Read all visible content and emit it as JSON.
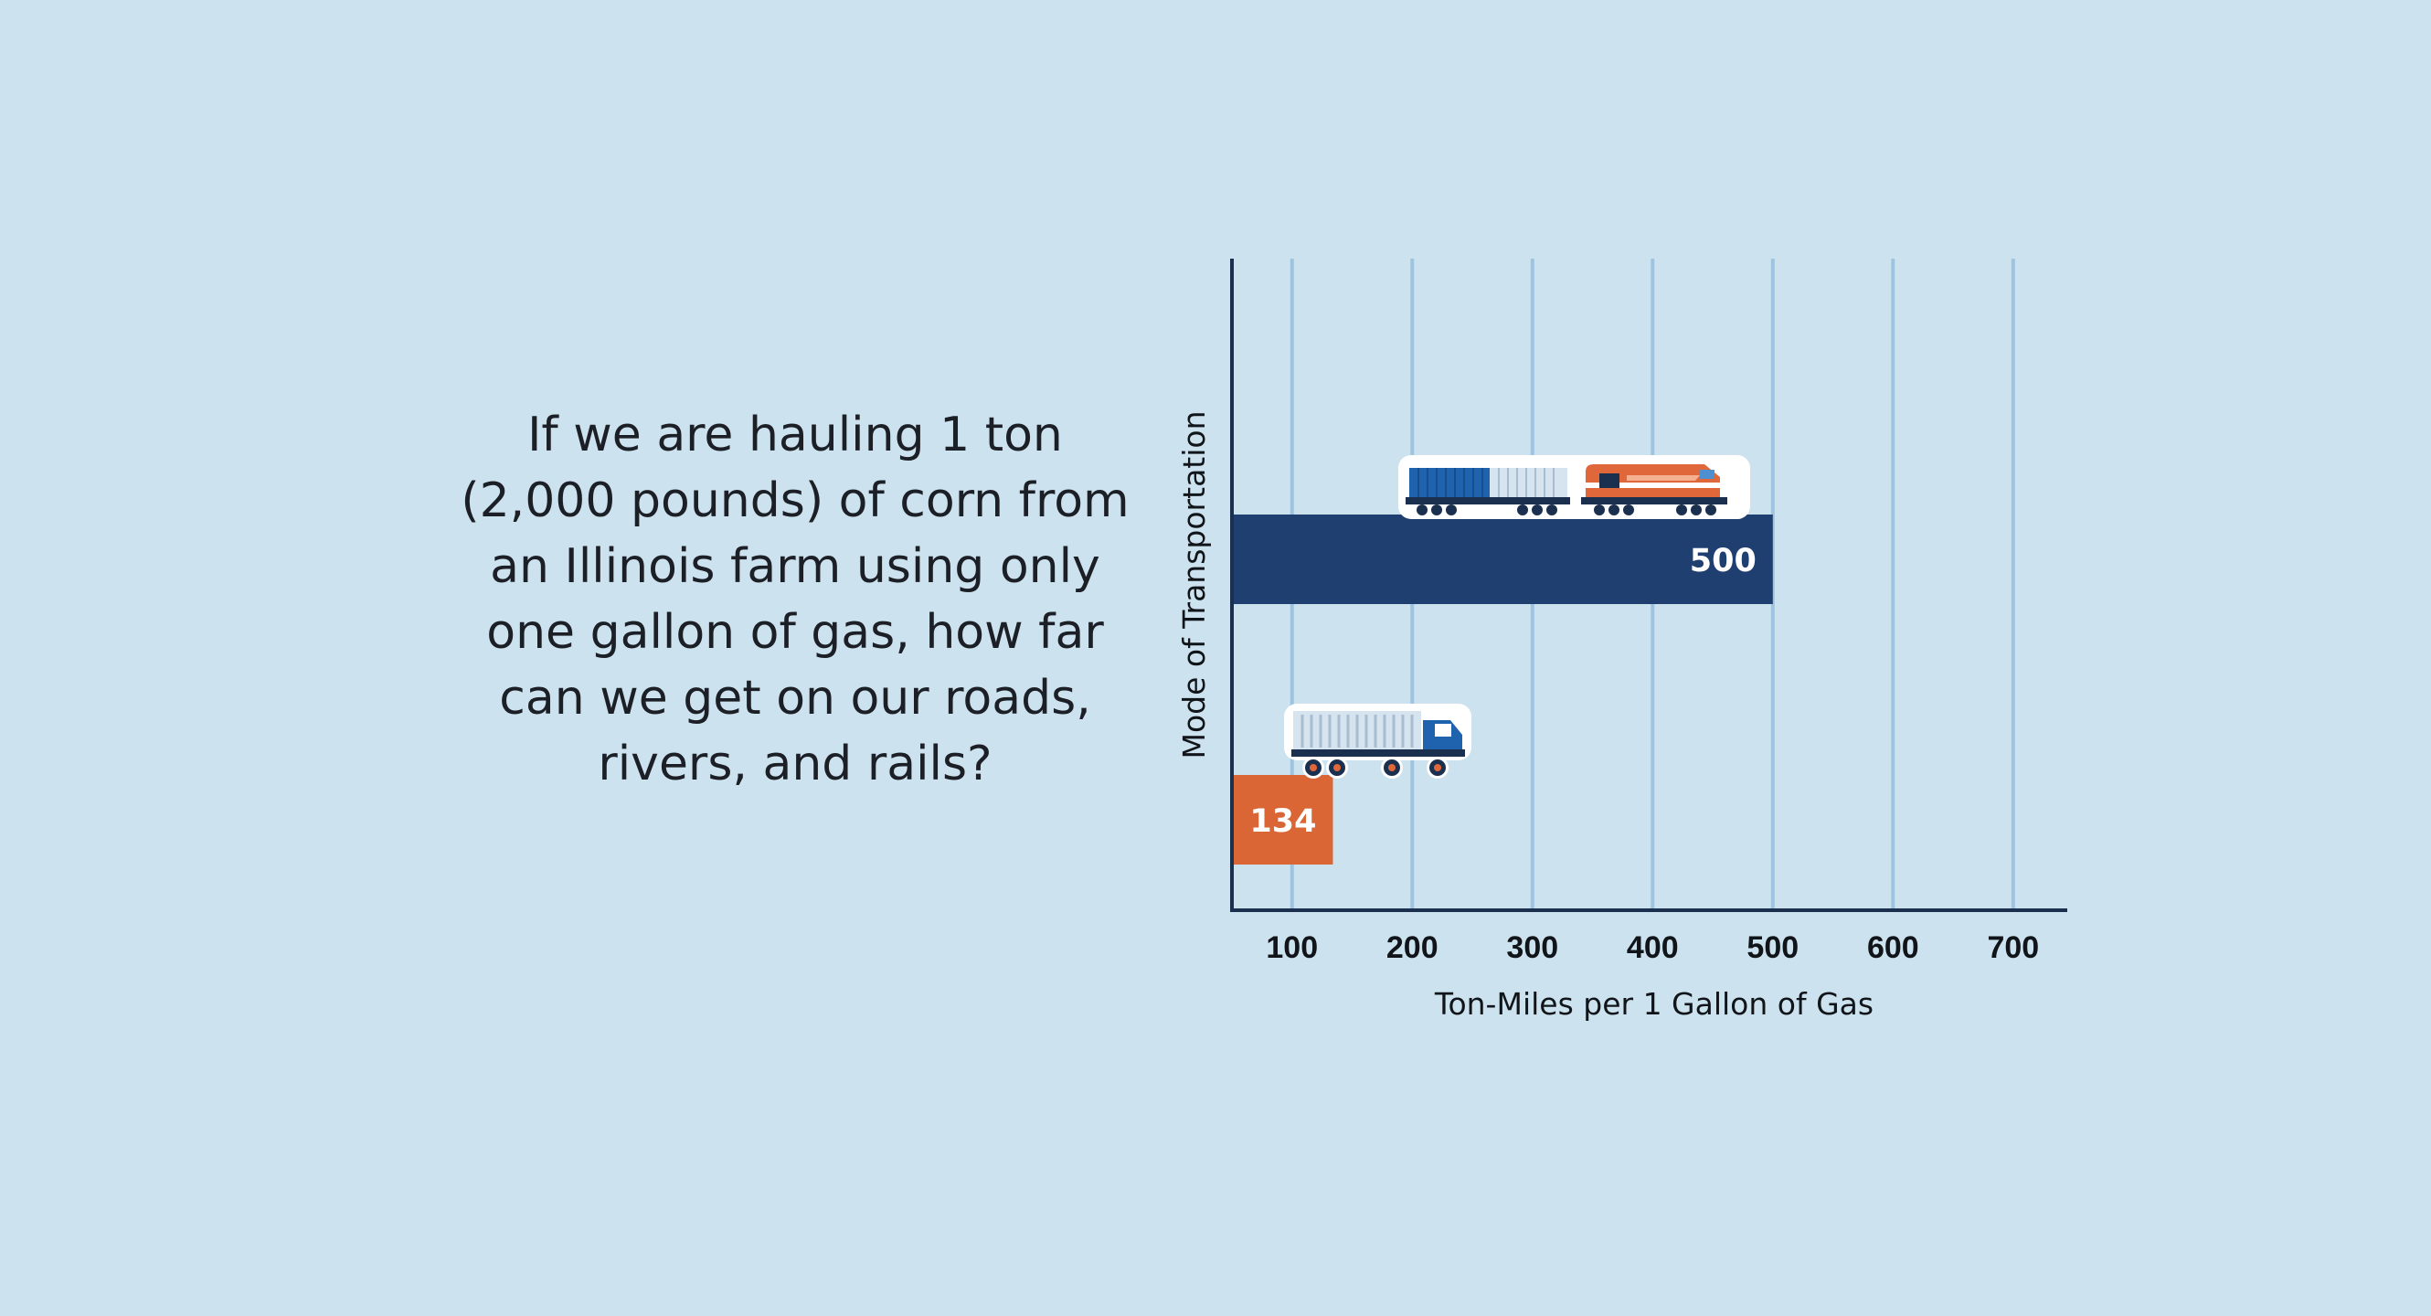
{
  "question": "If we are hauling 1 ton (2,000 pounds) of corn from an Illinois farm using only one gallon of gas, how far can we get on our roads, rivers, and rails?",
  "chart_data": {
    "type": "bar",
    "orientation": "horizontal",
    "title": "",
    "xlabel": "Ton-Miles per 1 Gallon of Gas",
    "ylabel": "Mode of Transportation",
    "x_ticks": [
      "100",
      "200",
      "300",
      "400",
      "500",
      "600",
      "700"
    ],
    "xlim": [
      50,
      745
    ],
    "grid": "vertical",
    "bars": [
      {
        "category": "train-icon",
        "value": 500,
        "label": "500",
        "color": "#1f3f70"
      },
      {
        "category": "truck-icon",
        "value": 134,
        "label": "134",
        "color": "#d96634"
      }
    ]
  },
  "colors": {
    "background": "#cce3ef",
    "gridline": "#9fc4df",
    "axis": "#1b2f4e",
    "rail": "#1f3f70",
    "road": "#d96634"
  }
}
